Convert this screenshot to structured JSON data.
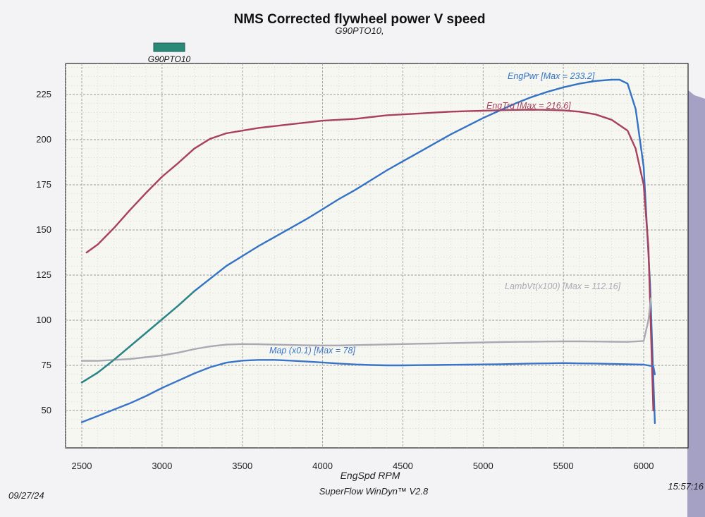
{
  "chart_data": {
    "type": "line",
    "title": "NMS Corrected flywheel power V speed",
    "subtitle": "G90PTO10,",
    "legend": [
      {
        "label": "G90PTO10",
        "color": "#2a8a78"
      }
    ],
    "xlabel": "EngSpd  RPM",
    "xlim": [
      2400,
      6250
    ],
    "ylim": [
      40,
      240
    ],
    "xticks": [
      2500,
      3000,
      3500,
      4000,
      4500,
      5000,
      5500,
      6000
    ],
    "yticks": [
      50,
      75,
      100,
      125,
      150,
      175,
      200,
      225
    ],
    "xtick_labels": [
      "2500",
      "3000",
      "3500",
      "4000",
      "4500",
      "5000",
      "5500",
      "6000"
    ],
    "ytick_labels": [
      "50",
      "75",
      "100",
      "125",
      "150",
      "175",
      "200",
      "225"
    ],
    "series": [
      {
        "name": "EngPwr",
        "label": "EngPwr [Max = 233.2]",
        "color": "#3372c4",
        "x": [
          2500,
          2600,
          2700,
          2800,
          2900,
          3000,
          3100,
          3200,
          3300,
          3400,
          3500,
          3600,
          3700,
          3800,
          3900,
          4000,
          4100,
          4200,
          4300,
          4400,
          4500,
          4600,
          4700,
          4800,
          4900,
          5000,
          5100,
          5200,
          5300,
          5400,
          5500,
          5600,
          5700,
          5800,
          5850,
          5900,
          5950,
          6000,
          6040,
          6070
        ],
        "y": [
          65.5,
          71,
          78,
          85.5,
          93,
          100.5,
          108,
          116,
          123,
          130,
          135.5,
          141,
          146,
          151,
          156,
          161.5,
          167,
          172,
          177.5,
          183,
          188,
          193,
          198,
          203,
          207.5,
          212,
          216,
          220,
          223.5,
          226.5,
          229,
          231,
          232.5,
          233.2,
          233.2,
          231,
          217,
          185,
          120,
          43
        ]
      },
      {
        "name": "EngTrq",
        "label": "EngTrq [Max = 216.6]",
        "color": "#a8405e",
        "x": [
          2530,
          2600,
          2700,
          2800,
          2900,
          3000,
          3100,
          3200,
          3300,
          3400,
          3500,
          3600,
          3700,
          3800,
          3900,
          4000,
          4100,
          4200,
          4300,
          4400,
          4500,
          4600,
          4700,
          4800,
          4900,
          5000,
          5100,
          5200,
          5300,
          5400,
          5500,
          5600,
          5700,
          5800,
          5900,
          5950,
          6000,
          6030,
          6060
        ],
        "y": [
          137.5,
          142,
          151,
          161,
          170.5,
          179.5,
          187,
          195,
          200.5,
          203.5,
          205,
          206.5,
          207.5,
          208.5,
          209.5,
          210.5,
          211,
          211.5,
          212.5,
          213.5,
          214,
          214.5,
          215,
          215.5,
          215.8,
          216,
          216.3,
          216.5,
          216.6,
          216.5,
          216.2,
          215.5,
          214,
          211,
          205,
          195,
          175,
          140,
          50
        ]
      },
      {
        "name": "LambVt(x100)",
        "label": "LambVt(x100) [Max = 112.16]",
        "color": "#a9a9b3",
        "x": [
          2500,
          2600,
          2700,
          2800,
          2900,
          3000,
          3100,
          3200,
          3300,
          3400,
          3500,
          3600,
          3700,
          3800,
          3900,
          4000,
          4100,
          4200,
          4300,
          4400,
          4500,
          4600,
          4700,
          4800,
          4900,
          5000,
          5100,
          5200,
          5300,
          5400,
          5500,
          5600,
          5700,
          5800,
          5900,
          6000,
          6030,
          6045
        ],
        "y": [
          77.5,
          77.5,
          78,
          78.5,
          79.5,
          80.5,
          82,
          84,
          85.5,
          86.5,
          86.8,
          86.7,
          86.5,
          86.3,
          86.1,
          86,
          86,
          86.2,
          86.4,
          86.6,
          86.8,
          87,
          87.1,
          87.3,
          87.5,
          87.7,
          87.9,
          88,
          88.1,
          88.2,
          88.3,
          88.3,
          88.2,
          88.1,
          88,
          88.5,
          100,
          112.16
        ]
      },
      {
        "name": "Map",
        "label": "Map  (x0.1) [Max = 78]",
        "color": "#3a74c8",
        "x": [
          2500,
          2600,
          2700,
          2800,
          2900,
          3000,
          3100,
          3200,
          3300,
          3400,
          3500,
          3600,
          3700,
          3800,
          3900,
          4000,
          4100,
          4200,
          4300,
          4400,
          4500,
          4600,
          4700,
          4800,
          4900,
          5000,
          5100,
          5200,
          5300,
          5400,
          5500,
          5600,
          5700,
          5800,
          5900,
          6000,
          6060,
          6070
        ],
        "y": [
          43.5,
          47,
          50.5,
          54,
          58,
          62.5,
          66.5,
          70.5,
          74,
          76.5,
          77.6,
          78,
          78,
          77.6,
          77.1,
          76.6,
          76,
          75.5,
          75.2,
          75,
          75,
          75.1,
          75.2,
          75.3,
          75.4,
          75.5,
          75.6,
          75.8,
          76,
          76.1,
          76.3,
          76.1,
          76,
          75.8,
          75.6,
          75.4,
          74.5,
          70
        ]
      }
    ]
  },
  "footer": {
    "date": "09/27/24",
    "software": "SuperFlow WinDyn™ V2.8",
    "time": "15:57:16"
  }
}
